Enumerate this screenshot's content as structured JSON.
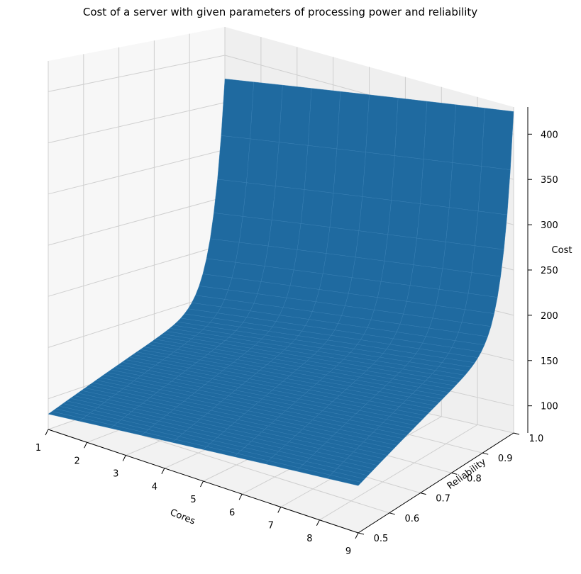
{
  "chart_data": {
    "type": "surface3d",
    "title": "Cost of a server with given parameters of processing power and reliability",
    "xlabel": "Cores",
    "ylabel": "Reliability",
    "zlabel": "Cost",
    "xlim": [
      1,
      9
    ],
    "ylim": [
      0.5,
      1.0
    ],
    "zlim": [
      70,
      430
    ],
    "xticks": [
      "1",
      "2",
      "3",
      "4",
      "5",
      "6",
      "7",
      "8",
      "9"
    ],
    "yticks": [
      "0.5",
      "0.6",
      "0.7",
      "0.8",
      "0.9",
      "1.0"
    ],
    "zticks": [
      "100",
      "150",
      "200",
      "250",
      "300",
      "350",
      "400"
    ],
    "surface_color": "#1f6aa0",
    "grid": true,
    "corners": [
      {
        "x": 1,
        "y": 0.5,
        "z": 85
      },
      {
        "x": 9,
        "y": 0.5,
        "z": 118
      },
      {
        "x": 1,
        "y": 1.0,
        "z": 375
      },
      {
        "x": 9,
        "y": 1.0,
        "z": 425
      }
    ]
  }
}
